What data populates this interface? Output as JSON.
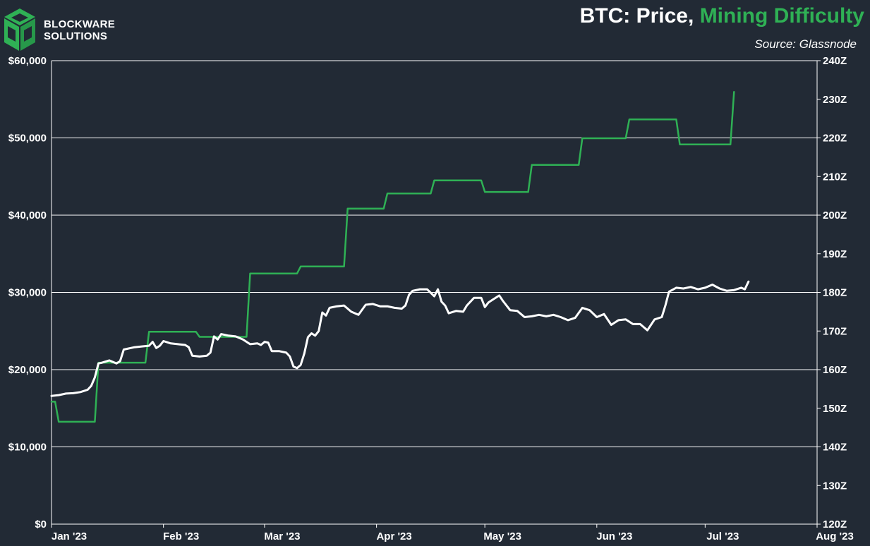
{
  "brand": {
    "line1": "BLOCKWARE",
    "line2": "SOLUTIONS"
  },
  "header": {
    "title_main": "BTC: Price,",
    "title_highlight": "Mining Difficulty",
    "source": "Source: Glassnode"
  },
  "colors": {
    "background": "#222a35",
    "price_line": "#ffffff",
    "difficulty_line": "#2fb155",
    "grid": "#ffffff"
  },
  "chart_data": {
    "type": "line",
    "title": "BTC: Price, Mining Difficulty",
    "x_axis": {
      "ticks": [
        "Jan '23",
        "Feb '23",
        "Mar '23",
        "Apr '23",
        "May '23",
        "Jun '23",
        "Jul '23",
        "Aug '23"
      ],
      "range": [
        "2023-01-01",
        "2023-08-01"
      ]
    },
    "y_left": {
      "range": [
        0,
        60000
      ],
      "ticks": [
        0,
        10000,
        20000,
        30000,
        40000,
        50000,
        60000
      ],
      "tick_labels": [
        "$0",
        "$10,000",
        "$20,000",
        "$30,000",
        "$40,000",
        "$50,000",
        "$60,000"
      ]
    },
    "y_right": {
      "range": [
        120,
        240
      ],
      "ticks": [
        120,
        130,
        140,
        150,
        160,
        170,
        180,
        190,
        200,
        210,
        220,
        230,
        240
      ],
      "tick_labels": [
        "120Z",
        "130Z",
        "140Z",
        "150Z",
        "160Z",
        "170Z",
        "180Z",
        "190Z",
        "200Z",
        "210Z",
        "220Z",
        "230Z",
        "240Z"
      ]
    },
    "grid": "horizontal",
    "series": [
      {
        "axis": "left",
        "color": "#ffffff",
        "points": [
          [
            "2023-01-01",
            16600
          ],
          [
            "2023-01-03",
            16700
          ],
          [
            "2023-01-05",
            16900
          ],
          [
            "2023-01-07",
            16950
          ],
          [
            "2023-01-09",
            17100
          ],
          [
            "2023-01-11",
            17400
          ],
          [
            "2023-01-12",
            17900
          ],
          [
            "2023-01-13",
            19000
          ],
          [
            "2023-01-14",
            20800
          ],
          [
            "2023-01-15",
            20900
          ],
          [
            "2023-01-17",
            21200
          ],
          [
            "2023-01-19",
            20800
          ],
          [
            "2023-01-20",
            21100
          ],
          [
            "2023-01-21",
            22600
          ],
          [
            "2023-01-22",
            22700
          ],
          [
            "2023-01-24",
            22900
          ],
          [
            "2023-01-26",
            23000
          ],
          [
            "2023-01-28",
            23100
          ],
          [
            "2023-01-29",
            23600
          ],
          [
            "2023-01-30",
            22800
          ],
          [
            "2023-01-31",
            23100
          ],
          [
            "2023-02-01",
            23700
          ],
          [
            "2023-02-03",
            23400
          ],
          [
            "2023-02-05",
            23300
          ],
          [
            "2023-02-07",
            23200
          ],
          [
            "2023-02-08",
            22900
          ],
          [
            "2023-02-09",
            21800
          ],
          [
            "2023-02-11",
            21700
          ],
          [
            "2023-02-13",
            21800
          ],
          [
            "2023-02-14",
            22200
          ],
          [
            "2023-02-15",
            24300
          ],
          [
            "2023-02-16",
            23900
          ],
          [
            "2023-02-17",
            24600
          ],
          [
            "2023-02-19",
            24400
          ],
          [
            "2023-02-21",
            24300
          ],
          [
            "2023-02-23",
            23900
          ],
          [
            "2023-02-25",
            23300
          ],
          [
            "2023-02-27",
            23400
          ],
          [
            "2023-02-28",
            23200
          ],
          [
            "2023-03-01",
            23600
          ],
          [
            "2023-03-02",
            23500
          ],
          [
            "2023-03-03",
            22400
          ],
          [
            "2023-03-05",
            22400
          ],
          [
            "2023-03-07",
            22200
          ],
          [
            "2023-03-08",
            21700
          ],
          [
            "2023-03-09",
            20400
          ],
          [
            "2023-03-10",
            20200
          ],
          [
            "2023-03-11",
            20600
          ],
          [
            "2023-03-12",
            22100
          ],
          [
            "2023-03-13",
            24200
          ],
          [
            "2023-03-14",
            24700
          ],
          [
            "2023-03-15",
            24400
          ],
          [
            "2023-03-16",
            25000
          ],
          [
            "2023-03-17",
            27400
          ],
          [
            "2023-03-18",
            27000
          ],
          [
            "2023-03-19",
            28000
          ],
          [
            "2023-03-21",
            28200
          ],
          [
            "2023-03-23",
            28300
          ],
          [
            "2023-03-25",
            27500
          ],
          [
            "2023-03-27",
            27100
          ],
          [
            "2023-03-29",
            28400
          ],
          [
            "2023-03-31",
            28500
          ],
          [
            "2023-04-02",
            28200
          ],
          [
            "2023-04-04",
            28200
          ],
          [
            "2023-04-06",
            28000
          ],
          [
            "2023-04-08",
            27900
          ],
          [
            "2023-04-09",
            28300
          ],
          [
            "2023-04-10",
            29700
          ],
          [
            "2023-04-11",
            30200
          ],
          [
            "2023-04-13",
            30400
          ],
          [
            "2023-04-15",
            30400
          ],
          [
            "2023-04-17",
            29500
          ],
          [
            "2023-04-18",
            30400
          ],
          [
            "2023-04-19",
            28800
          ],
          [
            "2023-04-20",
            28300
          ],
          [
            "2023-04-21",
            27300
          ],
          [
            "2023-04-23",
            27600
          ],
          [
            "2023-04-25",
            27500
          ],
          [
            "2023-04-26",
            28300
          ],
          [
            "2023-04-28",
            29300
          ],
          [
            "2023-04-30",
            29300
          ],
          [
            "2023-05-01",
            28100
          ],
          [
            "2023-05-02",
            28700
          ],
          [
            "2023-05-03",
            29000
          ],
          [
            "2023-05-05",
            29600
          ],
          [
            "2023-05-06",
            28900
          ],
          [
            "2023-05-08",
            27700
          ],
          [
            "2023-05-10",
            27600
          ],
          [
            "2023-05-12",
            26800
          ],
          [
            "2023-05-14",
            26900
          ],
          [
            "2023-05-16",
            27100
          ],
          [
            "2023-05-18",
            26900
          ],
          [
            "2023-05-20",
            27100
          ],
          [
            "2023-05-22",
            26800
          ],
          [
            "2023-05-24",
            26400
          ],
          [
            "2023-05-26",
            26700
          ],
          [
            "2023-05-28",
            28000
          ],
          [
            "2023-05-30",
            27700
          ],
          [
            "2023-06-01",
            26800
          ],
          [
            "2023-06-03",
            27200
          ],
          [
            "2023-06-05",
            25800
          ],
          [
            "2023-06-07",
            26400
          ],
          [
            "2023-06-09",
            26500
          ],
          [
            "2023-06-11",
            25900
          ],
          [
            "2023-06-13",
            25900
          ],
          [
            "2023-06-15",
            25100
          ],
          [
            "2023-06-17",
            26500
          ],
          [
            "2023-06-19",
            26800
          ],
          [
            "2023-06-20",
            28300
          ],
          [
            "2023-06-21",
            30100
          ],
          [
            "2023-06-23",
            30600
          ],
          [
            "2023-06-25",
            30500
          ],
          [
            "2023-06-27",
            30700
          ],
          [
            "2023-06-29",
            30400
          ],
          [
            "2023-07-01",
            30600
          ],
          [
            "2023-07-03",
            31000
          ],
          [
            "2023-07-05",
            30500
          ],
          [
            "2023-07-07",
            30200
          ],
          [
            "2023-07-09",
            30300
          ],
          [
            "2023-07-11",
            30600
          ],
          [
            "2023-07-12",
            30400
          ],
          [
            "2023-07-13",
            31400
          ]
        ]
      },
      {
        "axis": "right",
        "color": "#2fb155",
        "points": [
          [
            "2023-01-01",
            151.7
          ],
          [
            "2023-01-02",
            151.7
          ],
          [
            "2023-01-03",
            146.5
          ],
          [
            "2023-01-13",
            146.5
          ],
          [
            "2023-01-14",
            161.8
          ],
          [
            "2023-01-27",
            161.8
          ],
          [
            "2023-01-28",
            169.8
          ],
          [
            "2023-02-10",
            169.8
          ],
          [
            "2023-02-11",
            168.5
          ],
          [
            "2023-02-24",
            168.5
          ],
          [
            "2023-02-25",
            184.9
          ],
          [
            "2023-03-10",
            184.9
          ],
          [
            "2023-03-11",
            186.7
          ],
          [
            "2023-03-23",
            186.7
          ],
          [
            "2023-03-24",
            201.7
          ],
          [
            "2023-04-03",
            201.7
          ],
          [
            "2023-04-04",
            205.6
          ],
          [
            "2023-04-16",
            205.6
          ],
          [
            "2023-04-17",
            209.0
          ],
          [
            "2023-04-30",
            209.0
          ],
          [
            "2023-05-01",
            206.0
          ],
          [
            "2023-05-13",
            206.0
          ],
          [
            "2023-05-14",
            213.0
          ],
          [
            "2023-05-27",
            213.0
          ],
          [
            "2023-05-28",
            219.9
          ],
          [
            "2023-06-09",
            219.9
          ],
          [
            "2023-06-10",
            224.8
          ],
          [
            "2023-06-23",
            224.8
          ],
          [
            "2023-06-24",
            218.3
          ],
          [
            "2023-07-08",
            218.3
          ],
          [
            "2023-07-09",
            231.9
          ]
        ]
      }
    ]
  }
}
